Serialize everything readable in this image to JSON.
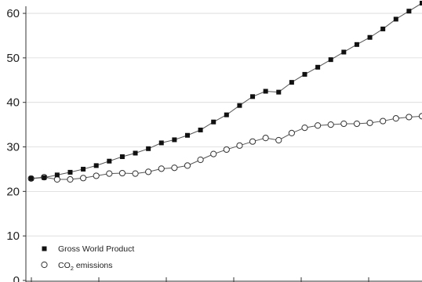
{
  "chart_data": {
    "type": "line",
    "title": "",
    "xlabel": "",
    "ylabel": "",
    "ylim": [
      0,
      63
    ],
    "yticks": [
      0,
      10,
      20,
      30,
      40,
      50,
      60
    ],
    "grid": "horizontal",
    "legend_position": "bottom-left",
    "x": [
      1,
      2,
      3,
      4,
      5,
      6,
      7,
      8,
      9,
      10,
      11,
      12,
      13,
      14,
      15,
      16,
      17,
      18,
      19,
      20,
      21,
      22,
      23,
      24,
      25,
      26,
      27,
      28,
      29,
      30,
      31
    ],
    "series": [
      {
        "name": "Gross World Product",
        "marker": "filled-square",
        "values": [
          22.9,
          23.1,
          23.7,
          24.3,
          25.0,
          25.8,
          26.8,
          27.8,
          28.6,
          29.6,
          30.9,
          31.6,
          32.6,
          33.8,
          35.6,
          37.2,
          39.3,
          41.3,
          42.5,
          42.3,
          44.5,
          46.3,
          47.9,
          49.6,
          51.3,
          53.0,
          54.6,
          56.5,
          58.7,
          60.5,
          62.3
        ]
      },
      {
        "name_parts": [
          "CO",
          "2",
          " emissions"
        ],
        "marker": "open-circle",
        "values": [
          22.9,
          23.2,
          22.7,
          22.7,
          23.0,
          23.5,
          24.0,
          24.1,
          24.0,
          24.4,
          25.1,
          25.3,
          25.8,
          27.1,
          28.4,
          29.4,
          30.3,
          31.2,
          32.0,
          31.5,
          33.1,
          34.3,
          34.8,
          35.0,
          35.2,
          35.2,
          35.4,
          35.8,
          36.4,
          36.7,
          36.9
        ]
      }
    ]
  }
}
